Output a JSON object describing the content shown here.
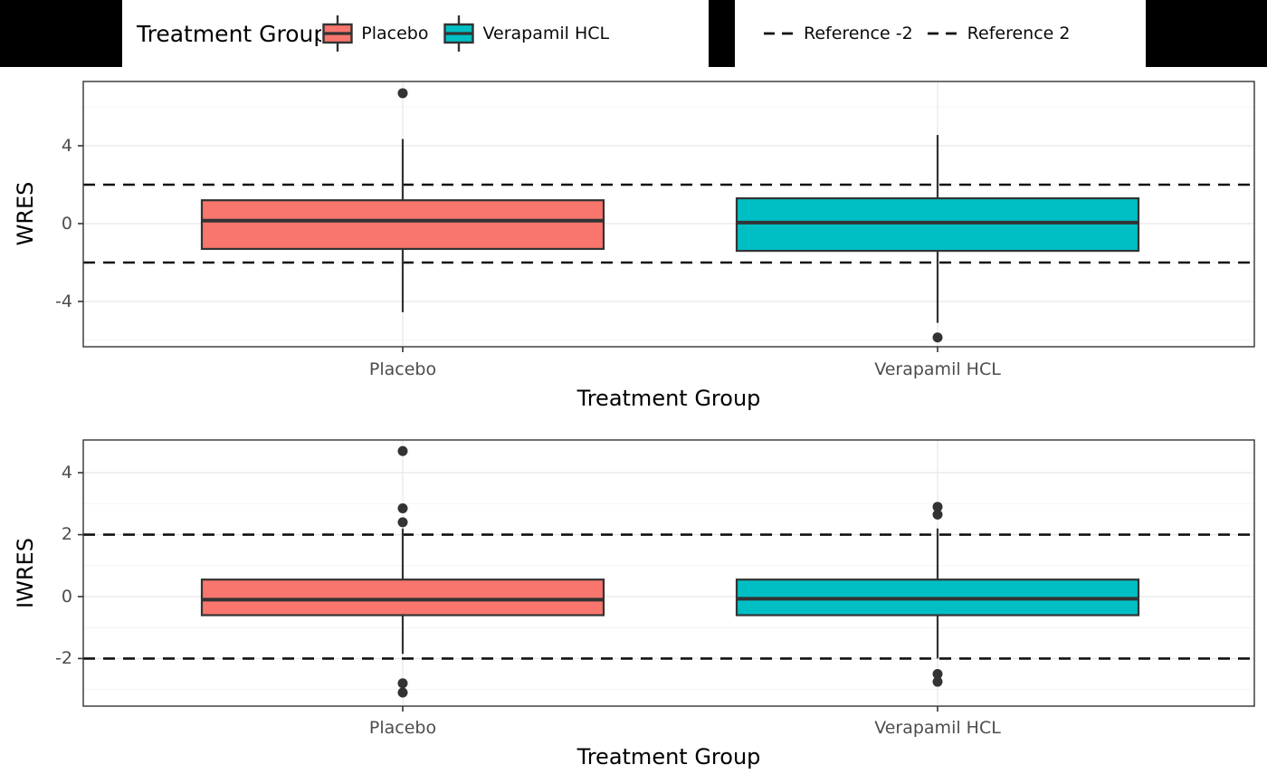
{
  "colors": {
    "placebo_fill": "#F8766D",
    "verapamil_fill": "#00BFC4",
    "box_stroke": "#333333",
    "dashed_line": "#111111",
    "panel_border": "#333333",
    "grid_major": "#E8E8E8",
    "grid_minor": "#F4F4F4",
    "axis_text": "#4D4D4D",
    "axis_title": "#000000",
    "strip_background": "#000000",
    "legend_background": "#FFFFFF"
  },
  "legend": {
    "title": "Treatment Group",
    "items": [
      {
        "label": "Placebo",
        "color": "#F8766D",
        "type": "boxplot-key"
      },
      {
        "label": "Verapamil HCL",
        "color": "#00BFC4",
        "type": "boxplot-key"
      }
    ],
    "reference_items": [
      {
        "label": "Reference -2",
        "type": "dashed-line-key"
      },
      {
        "label": "Reference 2",
        "type": "dashed-line-key"
      }
    ]
  },
  "chart_data": [
    {
      "type": "boxplot",
      "panel": "top",
      "xlabel": "Treatment Group",
      "ylabel": "WRES",
      "categories": [
        "Placebo",
        "Verapamil HCL"
      ],
      "yticks": [
        4,
        0,
        -4
      ],
      "ylim": [
        -6.35,
        7.3
      ],
      "grid_major": [
        -4,
        0,
        4
      ],
      "grid_minor": [
        -6,
        -2,
        2,
        6
      ],
      "reference_lines": [
        -2,
        2
      ],
      "legend_position": "top",
      "series": [
        {
          "category": "Placebo",
          "color": "#F8766D",
          "whisker_low": -4.55,
          "q1": -1.3,
          "median": 0.15,
          "q3": 1.2,
          "whisker_high": 4.35,
          "outliers": [
            6.7
          ]
        },
        {
          "category": "Verapamil HCL",
          "color": "#00BFC4",
          "whisker_low": -5.1,
          "q1": -1.4,
          "median": 0.05,
          "q3": 1.3,
          "whisker_high": 4.55,
          "outliers": [
            -5.85
          ]
        }
      ]
    },
    {
      "type": "boxplot",
      "panel": "bottom",
      "xlabel": "Treatment Group",
      "ylabel": "IWRES",
      "categories": [
        "Placebo",
        "Verapamil HCL"
      ],
      "yticks": [
        4,
        2,
        0,
        -2
      ],
      "ylim": [
        -3.55,
        5.05
      ],
      "grid_major": [
        4,
        2,
        0,
        -2
      ],
      "grid_minor": [
        3,
        1,
        -1,
        -3
      ],
      "reference_lines": [
        -2,
        2
      ],
      "series": [
        {
          "category": "Placebo",
          "color": "#F8766D",
          "whisker_low": -1.85,
          "q1": -0.6,
          "median": -0.1,
          "q3": 0.55,
          "whisker_high": 2.2,
          "outliers": [
            4.7,
            2.85,
            2.4,
            -2.8,
            -3.1
          ]
        },
        {
          "category": "Verapamil HCL",
          "color": "#00BFC4",
          "whisker_low": -2.0,
          "q1": -0.6,
          "median": -0.07,
          "q3": 0.55,
          "whisker_high": 2.2,
          "outliers": [
            2.9,
            2.65,
            -2.5,
            -2.75
          ]
        }
      ]
    }
  ]
}
